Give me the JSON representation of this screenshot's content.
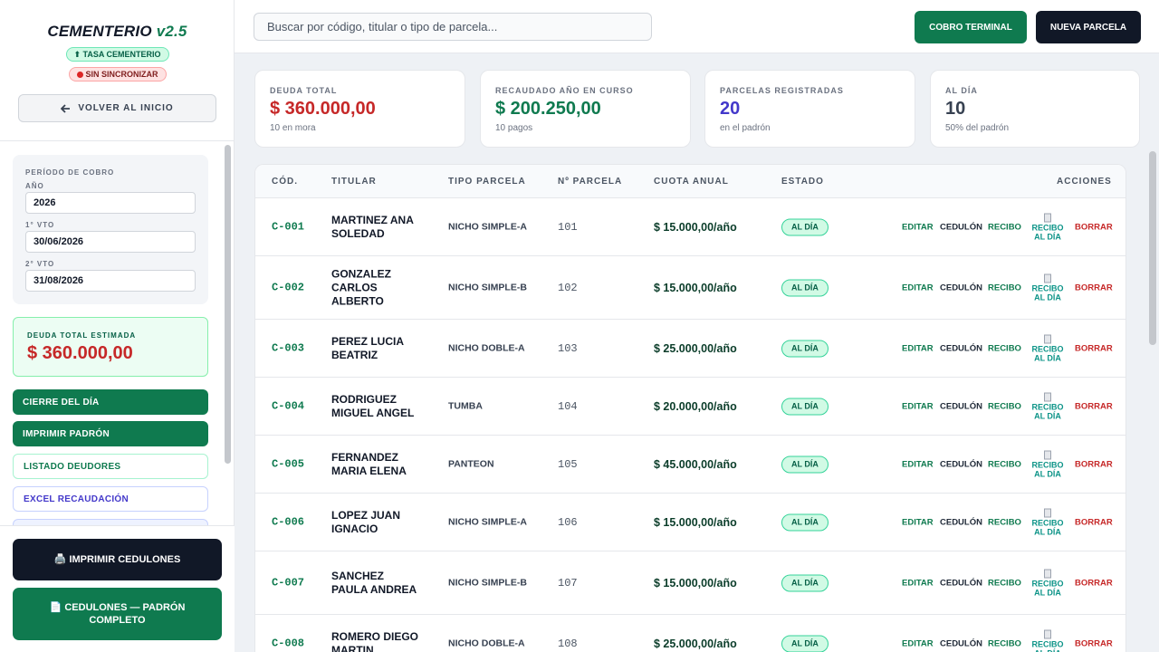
{
  "app": {
    "name": "CEMENTERIO",
    "version": "v2.5",
    "badge_tasa": "⬆ TASA CEMENTERIO",
    "badge_sync": "SIN SINCRONIZAR",
    "back_label": "VOLVER AL INICIO"
  },
  "period": {
    "title": "PERÍODO DE COBRO",
    "year_label": "AÑO",
    "year_value": "2026",
    "vto1_label": "1° VTO",
    "vto1_value": "30/06/2026",
    "vto2_label": "2° VTO",
    "vto2_value": "31/08/2026"
  },
  "debt_estimate": {
    "label": "DEUDA TOTAL ESTIMADA",
    "amount": "$ 360.000,00"
  },
  "side_actions": [
    {
      "label": "CIERRE DEL DÍA"
    },
    {
      "label": "IMPRIMIR PADRÓN"
    },
    {
      "label": "LISTADO DEUDORES"
    },
    {
      "label": "EXCEL RECAUDACIÓN"
    }
  ],
  "bottom_actions": {
    "print_label": "🖨️ IMPRIMIR CEDULONES",
    "full_label": "📄 CEDULONES — PADRÓN COMPLETO"
  },
  "topbar": {
    "search_placeholder": "Buscar por código, titular o tipo de parcela...",
    "cobro_label": "COBRO TERMINAL",
    "nueva_label": "NUEVA PARCELA"
  },
  "stats": [
    {
      "label": "DEUDA TOTAL",
      "value": "$ 360.000,00",
      "sub": "10 en mora",
      "color": "#c62828"
    },
    {
      "label": "RECAUDADO AÑO EN CURSO",
      "value": "$ 200.250,00",
      "sub": "10 pagos",
      "color": "#0f7a4f"
    },
    {
      "label": "PARCELAS REGISTRADAS",
      "value": "20",
      "sub": "en el padrón",
      "color": "#4338ca"
    },
    {
      "label": "AL DÍA",
      "value": "10",
      "sub": "50% del padrón",
      "color": "#374151"
    }
  ],
  "table": {
    "headers": [
      "CÓD.",
      "TITULAR",
      "TIPO PARCELA",
      "Nº PARCELA",
      "CUOTA ANUAL",
      "ESTADO",
      "ACCIONES"
    ],
    "actions": {
      "edit": "EDITAR",
      "cedulon": "CEDULÓN",
      "recibo": "RECIBO",
      "recibo_al_dia": "RECIBO AL DÍA",
      "borrar": "BORRAR"
    },
    "rows": [
      {
        "cod": "C-001",
        "titular": "MARTINEZ ANA SOLEDAD",
        "tipo": "NICHO SIMPLE-A",
        "num": "101",
        "cuota": "$ 15.000,00/año",
        "estado": "AL DÍA"
      },
      {
        "cod": "C-002",
        "titular": "GONZALEZ CARLOS ALBERTO",
        "tipo": "NICHO SIMPLE-B",
        "num": "102",
        "cuota": "$ 15.000,00/año",
        "estado": "AL DÍA"
      },
      {
        "cod": "C-003",
        "titular": "PEREZ LUCIA BEATRIZ",
        "tipo": "NICHO DOBLE-A",
        "num": "103",
        "cuota": "$ 25.000,00/año",
        "estado": "AL DÍA"
      },
      {
        "cod": "C-004",
        "titular": "RODRIGUEZ MIGUEL ANGEL",
        "tipo": "TUMBA",
        "num": "104",
        "cuota": "$ 20.000,00/año",
        "estado": "AL DÍA"
      },
      {
        "cod": "C-005",
        "titular": "FERNANDEZ MARIA ELENA",
        "tipo": "PANTEON",
        "num": "105",
        "cuota": "$ 45.000,00/año",
        "estado": "AL DÍA"
      },
      {
        "cod": "C-006",
        "titular": "LOPEZ JUAN IGNACIO",
        "tipo": "NICHO SIMPLE-A",
        "num": "106",
        "cuota": "$ 15.000,00/año",
        "estado": "AL DÍA"
      },
      {
        "cod": "C-007",
        "titular": "SANCHEZ PAULA ANDREA",
        "tipo": "NICHO SIMPLE-B",
        "num": "107",
        "cuota": "$ 15.000,00/año",
        "estado": "AL DÍA"
      },
      {
        "cod": "C-008",
        "titular": "ROMERO DIEGO MARTIN",
        "tipo": "NICHO DOBLE-A",
        "num": "108",
        "cuota": "$ 25.000,00/año",
        "estado": "AL DÍA"
      }
    ]
  }
}
